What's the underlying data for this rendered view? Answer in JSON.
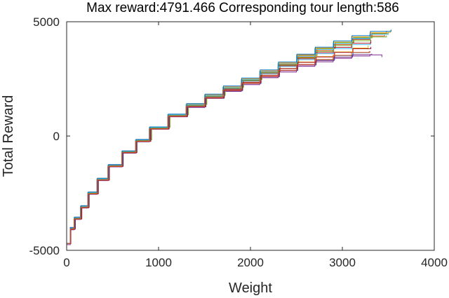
{
  "chart_data": {
    "type": "line",
    "title": "Max reward:4791.466 Corresponding tour length:586",
    "xlabel": "Weight",
    "ylabel": "Total Reward",
    "xlim": [
      0,
      4000
    ],
    "ylim": [
      -5000,
      5000
    ],
    "xticks": [
      0,
      1000,
      2000,
      3000,
      4000
    ],
    "xtick_labels": [
      "0",
      "1000",
      "2000",
      "3000",
      "4000"
    ],
    "yticks": [
      -5000,
      0,
      5000
    ],
    "ytick_labels": [
      "-5000",
      "0",
      "5000"
    ],
    "grid": false,
    "legend": "none",
    "step_style": true,
    "series_description_note_free": true,
    "series": [
      {
        "color": "#0072BD",
        "x": [
          0,
          40,
          80,
          150,
          230,
          330,
          450,
          600,
          750,
          900,
          1100,
          1300,
          1500,
          1700,
          1900,
          2100,
          2300,
          2500,
          2700,
          2900,
          3100,
          3300,
          3450
        ],
        "y": [
          -4700,
          -4050,
          -3600,
          -3100,
          -2500,
          -1900,
          -1300,
          -700,
          -200,
          350,
          900,
          1350,
          1750,
          2100,
          2450,
          2800,
          3150,
          3500,
          3800,
          4050,
          4250,
          4450,
          4500
        ]
      },
      {
        "color": "#D95319",
        "x": [
          0,
          40,
          90,
          160,
          240,
          340,
          460,
          610,
          760,
          920,
          1120,
          1320,
          1520,
          1720,
          1920,
          2120,
          2320,
          2520,
          2720,
          2920,
          3120,
          3320,
          3480
        ],
        "y": [
          -4700,
          -4000,
          -3550,
          -3050,
          -2450,
          -1850,
          -1250,
          -650,
          -150,
          400,
          950,
          1400,
          1800,
          2150,
          2500,
          2850,
          3200,
          3550,
          3850,
          4100,
          4300,
          4500,
          4600
        ]
      },
      {
        "color": "#EDB120",
        "x": [
          0,
          40,
          85,
          155,
          235,
          335,
          455,
          605,
          755,
          910,
          1110,
          1310,
          1510,
          1710,
          1910,
          2110,
          2310,
          2510,
          2710,
          2910,
          3110,
          3280
        ],
        "y": [
          -4700,
          -4080,
          -3620,
          -3120,
          -2520,
          -1920,
          -1320,
          -720,
          -220,
          320,
          860,
          1300,
          1680,
          2020,
          2340,
          2660,
          2960,
          3240,
          3480,
          3680,
          3850,
          3950
        ]
      },
      {
        "color": "#7E2F8E",
        "x": [
          0,
          40,
          80,
          150,
          230,
          330,
          450,
          600,
          750,
          900,
          1100,
          1300,
          1500,
          1700,
          1900,
          2100,
          2300,
          2500,
          2700,
          2900,
          3100,
          3300,
          3430
        ],
        "y": [
          -4750,
          -4100,
          -3650,
          -3150,
          -2550,
          -1950,
          -1350,
          -750,
          -250,
          300,
          850,
          1250,
          1650,
          1950,
          2250,
          2550,
          2800,
          3050,
          3250,
          3400,
          3500,
          3550,
          3450
        ]
      },
      {
        "color": "#77AC30",
        "x": [
          0,
          45,
          95,
          165,
          245,
          345,
          465,
          615,
          765,
          925,
          1125,
          1325,
          1525,
          1725,
          1925,
          2125,
          2325,
          2525,
          2725,
          2925,
          3125,
          3325,
          3500
        ],
        "y": [
          -4700,
          -4020,
          -3570,
          -3070,
          -2470,
          -1870,
          -1270,
          -670,
          -170,
          380,
          930,
          1380,
          1780,
          2130,
          2480,
          2830,
          3180,
          3520,
          3820,
          4080,
          4300,
          4480,
          4550
        ]
      },
      {
        "color": "#4DBEEE",
        "x": [
          0,
          40,
          85,
          155,
          235,
          335,
          455,
          605,
          755,
          905,
          1105,
          1305,
          1505,
          1705,
          1905,
          2105,
          2305,
          2505,
          2705,
          2905,
          3105,
          3305
        ],
        "y": [
          -4700,
          -4060,
          -3610,
          -3110,
          -2510,
          -1910,
          -1310,
          -710,
          -210,
          330,
          880,
          1320,
          1720,
          2060,
          2400,
          2720,
          3040,
          3340,
          3600,
          3820,
          4000,
          4120
        ]
      },
      {
        "color": "#A2142F",
        "x": [
          0,
          40,
          80,
          150,
          230,
          330,
          450,
          600,
          750,
          900,
          1100,
          1300,
          1500,
          1700,
          1900,
          2100,
          2300,
          2500,
          2700,
          2900,
          3100,
          3310
        ],
        "y": [
          -4700,
          -4040,
          -3590,
          -3090,
          -2490,
          -1890,
          -1290,
          -690,
          -190,
          360,
          910,
          1340,
          1740,
          2080,
          2420,
          2750,
          3070,
          3380,
          3650,
          3880,
          4060,
          4200
        ]
      },
      {
        "color": "#0072BD",
        "x": [
          0,
          45,
          90,
          160,
          240,
          340,
          460,
          610,
          760,
          915,
          1115,
          1315,
          1515,
          1715,
          1915,
          2115,
          2315,
          2515,
          2715,
          2915,
          3115,
          3290
        ],
        "y": [
          -4700,
          -4070,
          -3630,
          -3130,
          -2530,
          -1930,
          -1330,
          -730,
          -230,
          310,
          850,
          1280,
          1660,
          1990,
          2300,
          2600,
          2870,
          3120,
          3340,
          3520,
          3650,
          3700
        ]
      },
      {
        "color": "#D95319",
        "x": [
          0,
          40,
          85,
          155,
          235,
          335,
          455,
          605,
          755,
          905,
          1105,
          1305,
          1505,
          1705,
          1905,
          2105,
          2305,
          2505,
          2705,
          2905,
          3105,
          3305,
          3460
        ],
        "y": [
          -4700,
          -4030,
          -3580,
          -3080,
          -2480,
          -1880,
          -1280,
          -680,
          -180,
          370,
          920,
          1360,
          1760,
          2110,
          2460,
          2800,
          3130,
          3450,
          3740,
          4000,
          4220,
          4380,
          4420
        ]
      },
      {
        "color": "#EDB120",
        "x": [
          0,
          40,
          80,
          150,
          230,
          330,
          450,
          600,
          750,
          900,
          1100,
          1300,
          1500,
          1700,
          1900,
          2100,
          2300,
          2500,
          2700,
          2900,
          3100,
          3300,
          3520
        ],
        "y": [
          -4700,
          -4010,
          -3560,
          -3060,
          -2460,
          -1860,
          -1260,
          -660,
          -160,
          390,
          940,
          1390,
          1790,
          2140,
          2490,
          2840,
          3190,
          3530,
          3840,
          4110,
          4340,
          4520,
          4620
        ]
      },
      {
        "color": "#7E2F8E",
        "x": [
          0,
          45,
          90,
          160,
          240,
          340,
          460,
          610,
          760,
          910,
          1110,
          1310,
          1510,
          1710,
          1910,
          2110,
          2310,
          2510,
          2710,
          2910,
          3110,
          3320
        ],
        "y": [
          -4700,
          -4090,
          -3640,
          -3140,
          -2540,
          -1940,
          -1340,
          -740,
          -240,
          300,
          840,
          1270,
          1650,
          1980,
          2290,
          2590,
          2860,
          3100,
          3300,
          3450,
          3560,
          3600
        ]
      },
      {
        "color": "#77AC30",
        "x": [
          0,
          40,
          85,
          155,
          235,
          335,
          455,
          605,
          755,
          905,
          1105,
          1305,
          1505,
          1705,
          1905,
          2105,
          2305,
          2505,
          2705,
          2905,
          3105,
          3305,
          3480
        ],
        "y": [
          -4700,
          -4050,
          -3600,
          -3100,
          -2500,
          -1900,
          -1300,
          -700,
          -200,
          350,
          900,
          1340,
          1740,
          2090,
          2430,
          2770,
          3100,
          3420,
          3710,
          3960,
          4170,
          4330,
          4400
        ]
      },
      {
        "color": "#4DBEEE",
        "x": [
          0,
          40,
          80,
          150,
          230,
          330,
          450,
          600,
          750,
          900,
          1100,
          1300,
          1500,
          1700,
          1900,
          2100,
          2300,
          2500,
          2700,
          2900,
          3100,
          3300,
          3500
        ],
        "y": [
          -4700,
          -4020,
          -3570,
          -3070,
          -2470,
          -1870,
          -1270,
          -670,
          -170,
          380,
          930,
          1370,
          1770,
          2120,
          2470,
          2820,
          3160,
          3490,
          3790,
          4050,
          4270,
          4450,
          4520
        ]
      },
      {
        "color": "#A2142F",
        "x": [
          0,
          45,
          95,
          165,
          245,
          345,
          465,
          615,
          765,
          915,
          1115,
          1315,
          1515,
          1715,
          1915,
          2115,
          2315,
          2515,
          2715,
          2915,
          3115,
          3310
        ],
        "y": [
          -4700,
          -4060,
          -3620,
          -3120,
          -2520,
          -1920,
          -1320,
          -720,
          -220,
          320,
          870,
          1300,
          1690,
          2030,
          2350,
          2660,
          2950,
          3220,
          3460,
          3660,
          3820,
          3900
        ]
      },
      {
        "color": "#0072BD",
        "x": [
          0,
          40,
          85,
          155,
          235,
          335,
          455,
          605,
          755,
          905,
          1105,
          1305,
          1505,
          1705,
          1905,
          2105,
          2305,
          2505,
          2705,
          2905,
          3105,
          3305,
          3530
        ],
        "y": [
          -4700,
          -4000,
          -3550,
          -3050,
          -2450,
          -1850,
          -1250,
          -650,
          -150,
          400,
          960,
          1420,
          1830,
          2190,
          2540,
          2890,
          3240,
          3580,
          3890,
          4160,
          4390,
          4580,
          4650
        ]
      },
      {
        "color": "#D95319",
        "x": [
          0,
          40,
          80,
          150,
          230,
          330,
          450,
          600,
          750,
          900,
          1100,
          1300,
          1500,
          1700,
          1900,
          2100,
          2300,
          2500,
          2700,
          2900,
          3100,
          3300
        ],
        "y": [
          -4700,
          -4080,
          -3630,
          -3130,
          -2530,
          -1930,
          -1330,
          -730,
          -230,
          310,
          860,
          1290,
          1670,
          2000,
          2310,
          2610,
          2880,
          3130,
          3350,
          3530,
          3660,
          3720
        ]
      }
    ]
  }
}
